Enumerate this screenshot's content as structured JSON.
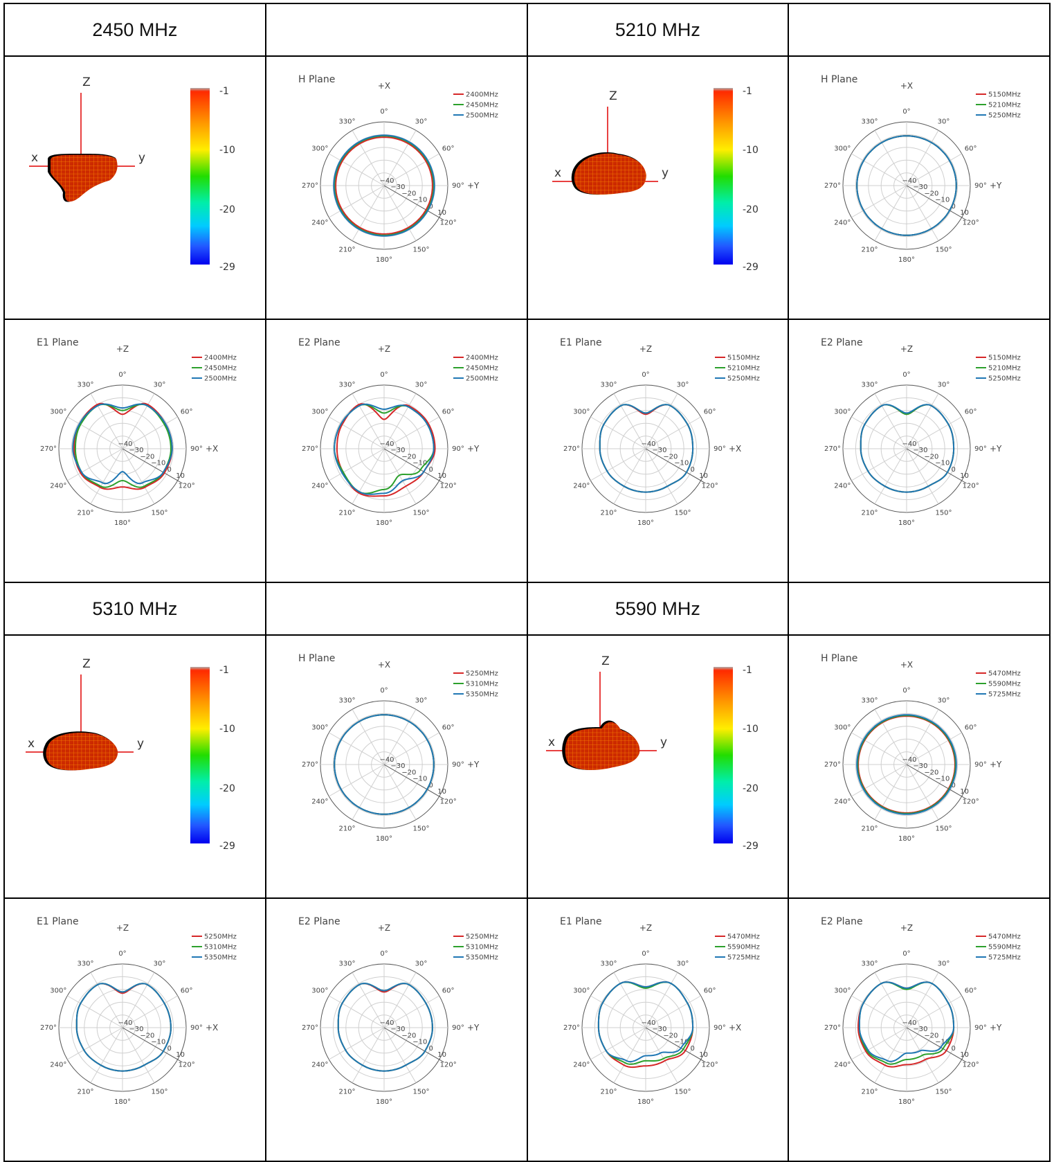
{
  "colors": {
    "red": "#d62728",
    "green": "#2ca02c",
    "blue": "#1f77b4",
    "grid": "#cfcfcf",
    "ring": "#555555",
    "text": "#444444"
  },
  "polar_labels": {
    "angles": [
      "0°",
      "30°",
      "60°",
      "90°",
      "120°",
      "150°",
      "180°",
      "210°",
      "240°",
      "270°",
      "300°",
      "330°"
    ],
    "radial": [
      "−40",
      "−30",
      "−20",
      "−10",
      "0",
      "10"
    ]
  },
  "colorbar_ticks": [
    "-1",
    "-10",
    "-20",
    "-29"
  ],
  "blocks": [
    {
      "header": "2450 MHz",
      "axes": {
        "z": "Z",
        "x": "x",
        "y": "y"
      },
      "legend": [
        "2400MHz",
        "2450MHz",
        "2500MHz"
      ],
      "h_plane": {
        "title": "H Plane",
        "axis_top": "+X",
        "axis_right": "+Y"
      },
      "e1_plane": {
        "title": "E1 Plane",
        "axis_top": "+Z",
        "axis_right": "+X"
      },
      "e2_plane": {
        "title": "E2 Plane",
        "axis_top": "+Z",
        "axis_right": "+Y"
      }
    },
    {
      "header": "5210 MHz",
      "axes": {
        "z": "Z",
        "x": "x",
        "y": "y"
      },
      "legend": [
        "5150MHz",
        "5210MHz",
        "5250MHz"
      ],
      "h_plane": {
        "title": "H Plane",
        "axis_top": "+X",
        "axis_right": "+Y"
      },
      "e1_plane": {
        "title": "E1 Plane",
        "axis_top": "+Z",
        "axis_right": "+X"
      },
      "e2_plane": {
        "title": "E2 Plane",
        "axis_top": "+Z",
        "axis_right": "+Y"
      }
    },
    {
      "header": "5310 MHz",
      "axes": {
        "z": "Z",
        "x": "x",
        "y": "y"
      },
      "legend": [
        "5250MHz",
        "5310MHz",
        "5350MHz"
      ],
      "h_plane": {
        "title": "H Plane",
        "axis_top": "+X",
        "axis_right": "+Y"
      },
      "e1_plane": {
        "title": "E1 Plane",
        "axis_top": "+Z",
        "axis_right": "+X"
      },
      "e2_plane": {
        "title": "E2 Plane",
        "axis_top": "+Z",
        "axis_right": "+Y"
      }
    },
    {
      "header": "5590 MHz",
      "axes": {
        "z": "Z",
        "x": "x",
        "y": "y"
      },
      "legend": [
        "5470MHz",
        "5590MHz",
        "5725MHz"
      ],
      "h_plane": {
        "title": "H Plane",
        "axis_top": "+X",
        "axis_right": "+Y"
      },
      "e1_plane": {
        "title": "E1 Plane",
        "axis_top": "+Z",
        "axis_right": "+X"
      },
      "e2_plane": {
        "title": "E2 Plane",
        "axis_top": "+Z",
        "axis_right": "+Y"
      }
    }
  ],
  "chart_data": [
    {
      "type": "line",
      "chart": "polar",
      "title": "H Plane",
      "rlim": [
        -40,
        10
      ],
      "theta": [
        0,
        30,
        60,
        90,
        120,
        150,
        180,
        210,
        240,
        270,
        300,
        330
      ],
      "series": [
        {
          "name": "2400MHz",
          "r": [
            -2,
            -2,
            -2,
            -2,
            -2,
            -2,
            -2,
            -2,
            -2,
            -2,
            -2,
            -2
          ]
        },
        {
          "name": "2450MHz",
          "r": [
            -1,
            -1,
            -1,
            -1,
            -1,
            -1,
            -1,
            -1,
            -1,
            -1,
            -1,
            -1
          ]
        },
        {
          "name": "2500MHz",
          "r": [
            -0.5,
            -0.5,
            -0.5,
            -0.5,
            -0.5,
            -0.5,
            -0.5,
            -0.5,
            -0.5,
            -0.5,
            -0.5,
            -0.5
          ]
        }
      ]
    },
    {
      "type": "line",
      "chart": "polar",
      "title": "E1 Plane",
      "rlim": [
        -40,
        10
      ],
      "theta": [
        0,
        30,
        60,
        90,
        120,
        150,
        180,
        210,
        240,
        270,
        300,
        330
      ],
      "series": [
        {
          "name": "2400MHz",
          "r": [
            -13,
            0,
            -1,
            -1,
            -2,
            -5,
            -10,
            -5,
            -2,
            -2,
            -1,
            0
          ]
        },
        {
          "name": "2450MHz",
          "r": [
            -10,
            -1,
            -2,
            -2,
            -3,
            -6,
            -15,
            -6,
            -3,
            -3,
            -2,
            -1
          ]
        },
        {
          "name": "2500MHz",
          "r": [
            -8,
            -1,
            -1,
            -1,
            -3,
            -9,
            -22,
            -9,
            -3,
            -1,
            -1,
            -1
          ]
        }
      ]
    },
    {
      "type": "line",
      "chart": "polar",
      "title": "E2 Plane",
      "rlim": [
        -40,
        10
      ],
      "theta": [
        0,
        30,
        60,
        90,
        120,
        150,
        180,
        210,
        240,
        270,
        300,
        330
      ],
      "series": [
        {
          "name": "2400MHz",
          "r": [
            -17,
            -1,
            0,
            0,
            -4,
            -6,
            -3,
            0,
            -3,
            -3,
            -2,
            0
          ]
        },
        {
          "name": "2450MHz",
          "r": [
            -12,
            -2,
            -1,
            -1,
            -7,
            -16,
            -8,
            -1,
            -3,
            -1,
            -1,
            -1
          ]
        },
        {
          "name": "2500MHz",
          "r": [
            -9,
            -2,
            -1,
            -1,
            -4,
            -11,
            -5,
            -1,
            -2,
            -1,
            -1,
            -1
          ]
        }
      ]
    },
    {
      "type": "line",
      "chart": "polar",
      "title": "H Plane",
      "rlim": [
        -40,
        10
      ],
      "theta": [
        0,
        30,
        60,
        90,
        120,
        150,
        180,
        210,
        240,
        270,
        300,
        330
      ],
      "series": [
        {
          "name": "5150MHz",
          "r": [
            -1,
            -1,
            -1,
            -1,
            -1,
            -1,
            -1,
            -1,
            -1,
            -1,
            -1,
            -1
          ]
        },
        {
          "name": "5210MHz",
          "r": [
            -1,
            -1,
            -1,
            -1,
            -1,
            -1,
            -1,
            -1,
            -1,
            -1,
            -1,
            -1
          ]
        },
        {
          "name": "5250MHz",
          "r": [
            -1,
            -1,
            -1,
            -1,
            -1,
            -1,
            -1,
            -1,
            -1,
            -1,
            -1,
            -1
          ]
        }
      ]
    },
    {
      "type": "line",
      "chart": "polar",
      "title": "E1 Plane",
      "rlim": [
        -40,
        10
      ],
      "theta": [
        0,
        30,
        60,
        90,
        120,
        150,
        180,
        210,
        240,
        270,
        300,
        330
      ],
      "series": [
        {
          "name": "5150MHz",
          "r": [
            -13,
            -1,
            -2,
            -3,
            -3,
            -6,
            -6,
            -6,
            -5,
            -4,
            -2,
            -1
          ]
        },
        {
          "name": "5210MHz",
          "r": [
            -12,
            -1,
            -2,
            -3,
            -3,
            -6,
            -6,
            -6,
            -5,
            -4,
            -2,
            -1
          ]
        },
        {
          "name": "5250MHz",
          "r": [
            -12,
            -1,
            -2,
            -3,
            -3,
            -6,
            -6,
            -6,
            -5,
            -4,
            -2,
            -1
          ]
        }
      ]
    },
    {
      "type": "line",
      "chart": "polar",
      "title": "E2 Plane",
      "rlim": [
        -40,
        10
      ],
      "theta": [
        0,
        30,
        60,
        90,
        120,
        150,
        180,
        210,
        240,
        270,
        300,
        330
      ],
      "series": [
        {
          "name": "5150MHz",
          "r": [
            -13,
            -1,
            -2,
            -3,
            -3,
            -6,
            -6,
            -6,
            -5,
            -4,
            -2,
            -1
          ]
        },
        {
          "name": "5210MHz",
          "r": [
            -13,
            -1,
            -2,
            -3,
            -3,
            -6,
            -6,
            -6,
            -5,
            -4,
            -2,
            -1
          ]
        },
        {
          "name": "5250MHz",
          "r": [
            -12,
            -1,
            -2,
            -3,
            -3,
            -6,
            -6,
            -6,
            -5,
            -4,
            -2,
            -1
          ]
        }
      ]
    },
    {
      "type": "line",
      "chart": "polar",
      "title": "H Plane",
      "rlim": [
        -40,
        10
      ],
      "theta": [
        0,
        30,
        60,
        90,
        120,
        150,
        180,
        210,
        240,
        270,
        300,
        330
      ],
      "series": [
        {
          "name": "5250MHz",
          "r": [
            -1,
            -1,
            -1,
            -1,
            -1,
            -1,
            -1,
            -1,
            -1,
            -1,
            -1,
            -1
          ]
        },
        {
          "name": "5310MHz",
          "r": [
            -1,
            -1,
            -1,
            -1,
            -1,
            -1,
            -1,
            -1,
            -1,
            -1,
            -1,
            -1
          ]
        },
        {
          "name": "5350MHz",
          "r": [
            -1,
            -1,
            -1,
            -1,
            -1,
            -1,
            -1,
            -1,
            -1,
            -1,
            -1,
            -1
          ]
        }
      ]
    },
    {
      "type": "line",
      "chart": "polar",
      "title": "E1 Plane",
      "rlim": [
        -40,
        10
      ],
      "theta": [
        0,
        30,
        60,
        90,
        120,
        150,
        180,
        210,
        240,
        270,
        300,
        330
      ],
      "series": [
        {
          "name": "5250MHz",
          "r": [
            -13,
            -1,
            -2,
            -2,
            -3,
            -6,
            -6,
            -6,
            -5,
            -4,
            -2,
            -1
          ]
        },
        {
          "name": "5310MHz",
          "r": [
            -12,
            -1,
            -2,
            -2,
            -3,
            -6,
            -6,
            -6,
            -5,
            -4,
            -2,
            -1
          ]
        },
        {
          "name": "5350MHz",
          "r": [
            -12,
            -1,
            -2,
            -2,
            -3,
            -6,
            -6,
            -6,
            -5,
            -4,
            -2,
            -1
          ]
        }
      ]
    },
    {
      "type": "line",
      "chart": "polar",
      "title": "E2 Plane",
      "rlim": [
        -40,
        10
      ],
      "theta": [
        0,
        30,
        60,
        90,
        120,
        150,
        180,
        210,
        240,
        270,
        300,
        330
      ],
      "series": [
        {
          "name": "5250MHz",
          "r": [
            -12,
            -1,
            -2,
            -2,
            -3,
            -6,
            -6,
            -6,
            -5,
            -4,
            -2,
            -1
          ]
        },
        {
          "name": "5310MHz",
          "r": [
            -11,
            -1,
            -2,
            -2,
            -3,
            -6,
            -6,
            -6,
            -5,
            -4,
            -2,
            -1
          ]
        },
        {
          "name": "5350MHz",
          "r": [
            -11,
            -1,
            -2,
            -2,
            -3,
            -6,
            -6,
            -6,
            -5,
            -4,
            -2,
            -1
          ]
        }
      ]
    },
    {
      "type": "line",
      "chart": "polar",
      "title": "H Plane",
      "rlim": [
        -40,
        10
      ],
      "theta": [
        0,
        30,
        60,
        90,
        120,
        150,
        180,
        210,
        240,
        270,
        300,
        330
      ],
      "series": [
        {
          "name": "5470MHz",
          "r": [
            -2,
            -2,
            -2,
            -2,
            -2,
            -2,
            -2,
            -2,
            -2,
            -2,
            -2,
            -2
          ]
        },
        {
          "name": "5590MHz",
          "r": [
            -1.5,
            -1.5,
            -1.5,
            -1.5,
            -1.5,
            -1.5,
            -1.5,
            -1.5,
            -1.5,
            -1.5,
            -1.5,
            -1.5
          ]
        },
        {
          "name": "5725MHz",
          "r": [
            -1,
            -1,
            -1,
            -1,
            -1,
            -1,
            -1,
            -1,
            -1,
            -1,
            -1,
            -1
          ]
        }
      ]
    },
    {
      "type": "line",
      "chart": "polar",
      "title": "E1 Plane",
      "rlim": [
        -40,
        10
      ],
      "theta": [
        0,
        30,
        60,
        90,
        120,
        150,
        180,
        210,
        240,
        270,
        300,
        330
      ],
      "series": [
        {
          "name": "5470MHz",
          "r": [
            -8,
            0,
            -2,
            -3,
            -4,
            -10,
            -10,
            -6,
            -4,
            -3,
            -1,
            0
          ]
        },
        {
          "name": "5590MHz",
          "r": [
            -9,
            0,
            -2,
            -3,
            -6,
            -12,
            -14,
            -8,
            -4,
            -3,
            -1,
            0
          ]
        },
        {
          "name": "5725MHz",
          "r": [
            -8,
            0,
            -2,
            -3,
            -8,
            -17,
            -18,
            -10,
            -4,
            -3,
            -1,
            0
          ]
        }
      ]
    },
    {
      "type": "line",
      "chart": "polar",
      "title": "E2 Plane",
      "rlim": [
        -40,
        10
      ],
      "theta": [
        0,
        30,
        60,
        90,
        120,
        150,
        180,
        210,
        240,
        270,
        300,
        330
      ],
      "series": [
        {
          "name": "5470MHz",
          "r": [
            -9,
            0,
            -2,
            -3,
            -4,
            -11,
            -11,
            -6,
            -3,
            -2,
            -1,
            0
          ]
        },
        {
          "name": "5590MHz",
          "r": [
            -10,
            0,
            -2,
            -3,
            -7,
            -15,
            -15,
            -8,
            -4,
            -3,
            -1,
            0
          ]
        },
        {
          "name": "5725MHz",
          "r": [
            -9,
            0,
            -2,
            -3,
            -9,
            -19,
            -20,
            -10,
            -5,
            -3,
            -1,
            0
          ]
        }
      ]
    }
  ]
}
